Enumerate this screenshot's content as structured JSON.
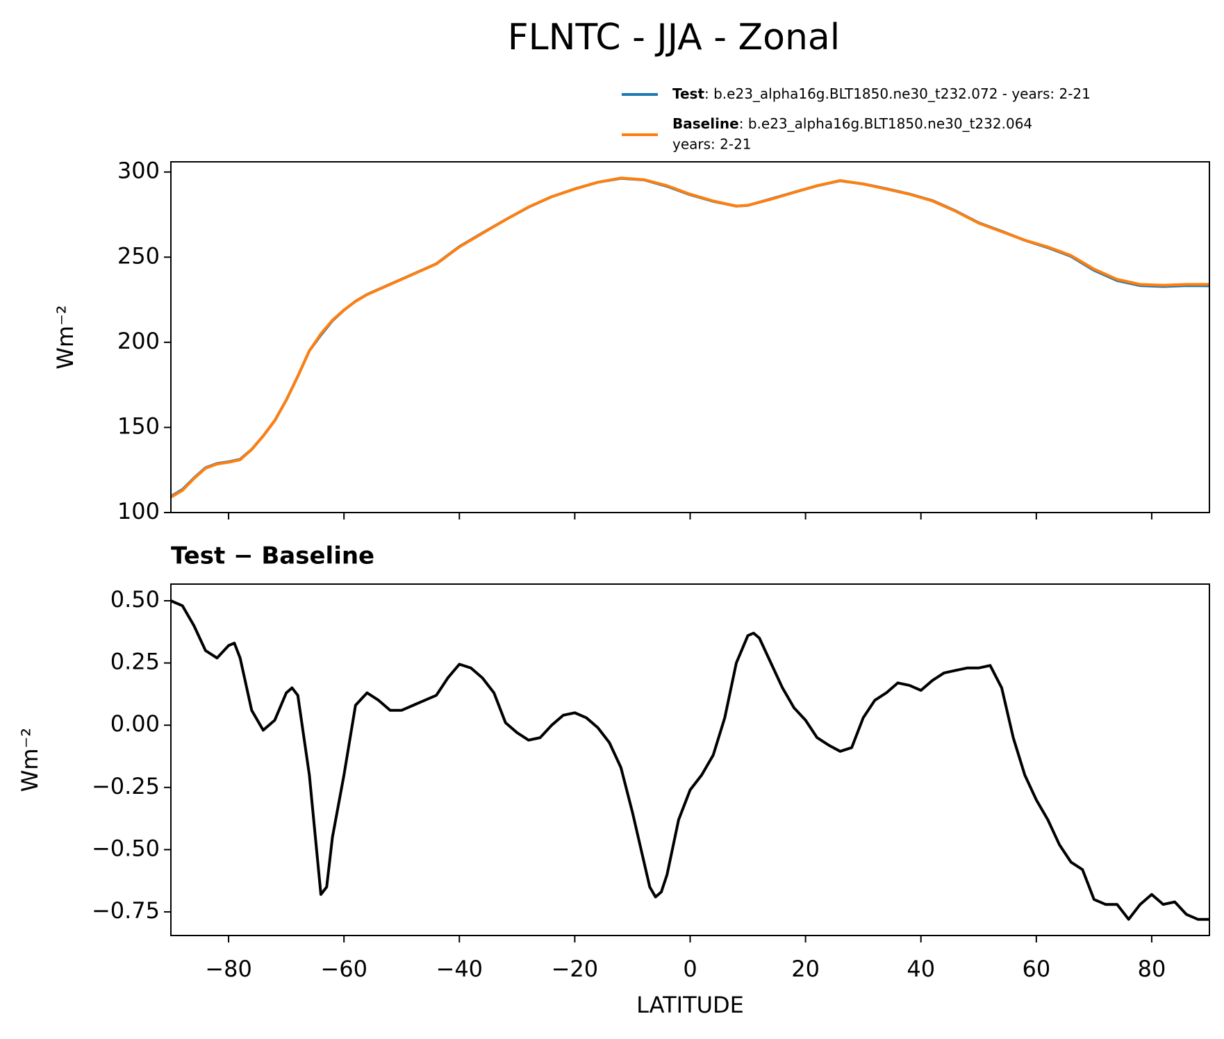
{
  "title": "FLNTC - JJA - Zonal",
  "chart_data": [
    {
      "type": "line",
      "ylabel": "Wm⁻²",
      "x": [
        -90,
        -88,
        -86,
        -84,
        -82,
        -80,
        -78,
        -76,
        -74,
        -72,
        -70,
        -68,
        -66,
        -64,
        -62,
        -60,
        -58,
        -56,
        -52,
        -50,
        -44,
        -40,
        -36,
        -32,
        -28,
        -24,
        -20,
        -16,
        -12,
        -8,
        -4,
        0,
        4,
        8,
        10,
        14,
        18,
        22,
        26,
        30,
        34,
        38,
        42,
        46,
        50,
        54,
        58,
        62,
        66,
        70,
        74,
        78,
        82,
        86,
        90
      ],
      "series": [
        {
          "name": "Test",
          "description": [
            ": b.e23_alpha16g.BLT1850.ne30_t232.072 - years: 2-21"
          ],
          "color": "#1f77b4",
          "values": [
            109.5,
            113.5,
            120.3,
            126.3,
            128.8,
            129.8,
            131.3,
            137.1,
            145,
            154,
            166.1,
            180.1,
            195,
            204.3,
            212.7,
            218.9,
            224.1,
            228.1,
            234.1,
            237.1,
            246.1,
            256.2,
            264.2,
            272,
            279.4,
            285.5,
            290.1,
            294,
            296.3,
            295.4,
            291.6,
            286.7,
            282.8,
            280,
            280.4,
            284.2,
            288.1,
            291.9,
            294.9,
            293,
            290.2,
            287.1,
            283.2,
            277.2,
            270.2,
            265.2,
            259.9,
            255.6,
            250.5,
            242.3,
            236.3,
            233.3,
            232.8,
            233.3,
            233.2
          ]
        },
        {
          "name": "Baseline",
          "description": [
            ": b.e23_alpha16g.BLT1850.ne30_t232.064",
            "years: 2-21"
          ],
          "color": "#ff7f0e",
          "values": [
            109,
            113,
            120,
            126,
            128.5,
            129.5,
            131,
            137,
            145,
            154,
            166,
            180,
            195,
            205,
            213,
            219,
            224,
            228,
            234,
            237,
            246,
            256,
            264,
            272,
            279.5,
            285.5,
            290,
            294,
            296.5,
            295.5,
            292,
            287,
            283,
            280,
            280.5,
            284,
            288,
            292,
            295,
            293,
            290,
            287,
            283,
            277,
            270,
            265,
            260,
            256,
            251,
            243,
            237,
            234,
            233.5,
            234,
            234
          ]
        }
      ],
      "xlim": [
        -90,
        90
      ],
      "xticks": [
        -80,
        -60,
        -40,
        -20,
        0,
        20,
        40,
        60,
        80
      ],
      "ylim": [
        100,
        306
      ],
      "yticks": [
        100,
        150,
        200,
        250,
        300
      ]
    },
    {
      "type": "line",
      "title": "Test − Baseline",
      "xlabel": "LATITUDE",
      "ylabel": "Wm⁻²",
      "x": [
        -90,
        -88,
        -86,
        -84,
        -82,
        -80,
        -79,
        -78,
        -76,
        -74,
        -72,
        -70,
        -69,
        -68,
        -66,
        -64,
        -63,
        -62,
        -60,
        -58,
        -56,
        -54,
        -52,
        -50,
        -48,
        -46,
        -44,
        -42,
        -40,
        -38,
        -36,
        -34,
        -32,
        -30,
        -28,
        -26,
        -24,
        -22,
        -20,
        -18,
        -16,
        -14,
        -12,
        -10,
        -8,
        -7,
        -6,
        -5,
        -4,
        -2,
        0,
        2,
        4,
        6,
        8,
        10,
        11,
        12,
        14,
        16,
        18,
        20,
        22,
        24,
        26,
        28,
        30,
        32,
        34,
        36,
        38,
        40,
        42,
        44,
        46,
        48,
        50,
        52,
        54,
        56,
        58,
        60,
        62,
        64,
        66,
        68,
        70,
        72,
        74,
        76,
        78,
        80,
        82,
        84,
        86,
        88,
        90
      ],
      "series": [
        {
          "name": "Test − Baseline",
          "color": "#000000",
          "values": [
            0.5,
            0.48,
            0.4,
            0.3,
            0.27,
            0.32,
            0.33,
            0.27,
            0.06,
            -0.02,
            0.02,
            0.13,
            0.15,
            0.12,
            -0.2,
            -0.68,
            -0.65,
            -0.45,
            -0.2,
            0.08,
            0.13,
            0.1,
            0.06,
            0.06,
            0.08,
            0.1,
            0.12,
            0.19,
            0.245,
            0.23,
            0.19,
            0.13,
            0.01,
            -0.03,
            -0.06,
            -0.05,
            0,
            0.04,
            0.05,
            0.03,
            -0.01,
            -0.07,
            -0.17,
            -0.35,
            -0.55,
            -0.65,
            -0.69,
            -0.67,
            -0.6,
            -0.38,
            -0.26,
            -0.2,
            -0.12,
            0.03,
            0.25,
            0.36,
            0.37,
            0.35,
            0.25,
            0.15,
            0.07,
            0.02,
            -0.05,
            -0.08,
            -0.105,
            -0.09,
            0.03,
            0.1,
            0.13,
            0.17,
            0.16,
            0.14,
            0.18,
            0.21,
            0.22,
            0.23,
            0.23,
            0.24,
            0.15,
            -0.05,
            -0.2,
            -0.3,
            -0.38,
            -0.48,
            -0.55,
            -0.58,
            -0.7,
            -0.72,
            -0.72,
            -0.78,
            -0.72,
            -0.68,
            -0.72,
            -0.71,
            -0.76,
            -0.78,
            -0.78
          ]
        }
      ],
      "xlim": [
        -90,
        90
      ],
      "xticks": [
        {
          "value": -80,
          "label": "−80"
        },
        {
          "value": -60,
          "label": "−60"
        },
        {
          "value": -40,
          "label": "−40"
        },
        {
          "value": -20,
          "label": "−20"
        },
        0,
        20,
        40,
        60,
        80
      ],
      "ylim": [
        -0.845,
        0.567
      ],
      "yticks": [
        {
          "value": -0.75,
          "label": "−0.75"
        },
        {
          "value": -0.5,
          "label": "−0.50"
        },
        {
          "value": -0.25,
          "label": "−0.25"
        },
        {
          "value": 0,
          "label": "0.00"
        },
        0.25,
        {
          "value": 0.5,
          "label": "0.50"
        }
      ]
    }
  ]
}
